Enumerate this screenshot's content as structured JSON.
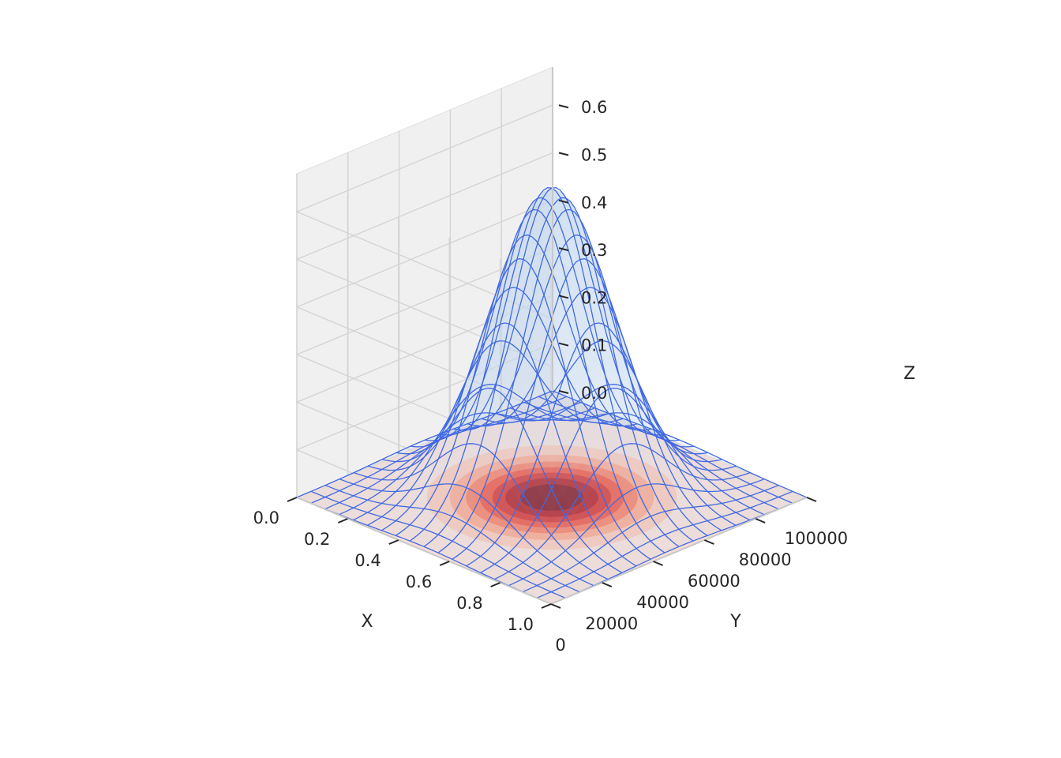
{
  "chart_data": {
    "type": "surface3d",
    "title": "",
    "xlabel": "X",
    "ylabel": "Y",
    "zlabel": "Z",
    "xlim": [
      0.0,
      1.0
    ],
    "ylim": [
      0,
      100000
    ],
    "zlim": [
      0.0,
      0.68
    ],
    "x_ticks": [
      "0.0",
      "0.2",
      "0.4",
      "0.6",
      "0.8",
      "1.0"
    ],
    "y_ticks": [
      "0",
      "20000",
      "40000",
      "60000",
      "80000",
      "100000"
    ],
    "z_ticks": [
      "0.0",
      "0.1",
      "0.2",
      "0.3",
      "0.4",
      "0.5",
      "0.6"
    ],
    "surface": {
      "function": "gaussian",
      "peak_z": 0.65,
      "center_x": 0.5,
      "center_y": 50000,
      "sigma_x": 0.17,
      "sigma_y": 17000,
      "wireframe_color": "#4169e1",
      "face_color": "#c6d9ee"
    },
    "contour": {
      "plane_z": 0.0,
      "colormap": "Reds",
      "levels": 8
    },
    "pane_colors": {
      "left": "#f7f7f7",
      "right": "#f0f0f0",
      "floor": "#f2f2f2"
    },
    "grid": true
  }
}
